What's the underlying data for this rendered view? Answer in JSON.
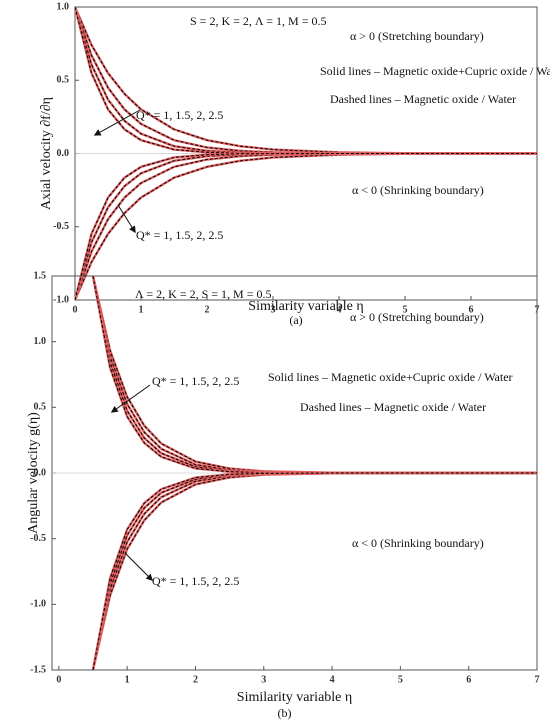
{
  "chart_data": [
    {
      "type": "line",
      "xlabel": "Similarity variable η",
      "ylabel": "Axial velocity ∂f/∂η",
      "caption": "(a)",
      "annotations": [
        "S = 2,  K = 2,  Λ = 1, M = 0.5",
        "α > 0 (Stretching boundary)",
        "Solid lines – Magnetic oxide+Cupric oxide / Water",
        "Dashed lines – Magnetic oxide / Water",
        "Q* = 1, 1.5, 2, 2.5",
        "α < 0 (Shrinking boundary)",
        "Q* = 1, 1.5, 2, 2.5"
      ],
      "xlim": [
        0,
        7
      ],
      "ylim": [
        -1,
        1
      ],
      "xticks": [
        0,
        1,
        2,
        3,
        4,
        5,
        6,
        7
      ],
      "yticks": [
        {
          "value": -1,
          "label": "-1.0"
        },
        -0.5,
        {
          "value": 0,
          "label": "0.0"
        },
        0.5,
        {
          "value": 1,
          "label": "1.0"
        }
      ],
      "line_color": "#e06060",
      "dash_color": "#000000",
      "x": [
        0,
        0.25,
        0.5,
        0.75,
        1,
        1.5,
        2,
        2.5,
        3,
        4,
        5,
        7
      ],
      "series": [
        {
          "values": [
            1,
            0.741,
            0.549,
            0.407,
            0.301,
            0.165,
            0.091,
            0.05,
            0.027,
            0.008,
            0.002,
            0
          ]
        },
        {
          "values": [
            1,
            0.67,
            0.449,
            0.301,
            0.202,
            0.091,
            0.041,
            0.018,
            0.008,
            0.002,
            0,
            0
          ]
        },
        {
          "values": [
            1,
            0.607,
            0.368,
            0.223,
            0.135,
            0.05,
            0.018,
            0.007,
            0.002,
            0,
            0,
            0
          ]
        },
        {
          "values": [
            1,
            0.549,
            0.301,
            0.165,
            0.091,
            0.027,
            0.008,
            0.002,
            0.001,
            0,
            0,
            0
          ]
        },
        {
          "values": [
            -1,
            -0.741,
            -0.549,
            -0.407,
            -0.301,
            -0.165,
            -0.091,
            -0.05,
            -0.027,
            -0.008,
            -0.002,
            0
          ]
        },
        {
          "values": [
            -1,
            -0.67,
            -0.449,
            -0.301,
            -0.202,
            -0.091,
            -0.041,
            -0.018,
            -0.008,
            -0.002,
            0,
            0
          ]
        },
        {
          "values": [
            -1,
            -0.607,
            -0.368,
            -0.223,
            -0.135,
            -0.05,
            -0.018,
            -0.007,
            -0.002,
            0,
            0,
            0
          ]
        },
        {
          "values": [
            -1,
            -0.549,
            -0.301,
            -0.165,
            -0.091,
            -0.027,
            -0.008,
            -0.002,
            -0.001,
            0,
            0,
            0
          ]
        }
      ]
    },
    {
      "type": "line",
      "xlabel": "Similarity variable η",
      "ylabel": "Angular velocity g(η)",
      "caption": "(b)",
      "annotations": [
        "Λ = 2,  K = 2,  S = 1,  M = 0.5",
        "α > 0 (Stretching boundary)",
        "Solid lines – Magnetic oxide+Cupric oxide / Water",
        "Dashed lines – Magnetic oxide / Water",
        "Q* = 1, 1.5, 2, 2.5",
        "α < 0 (Shrinking boundary)",
        "Q* = 1, 1.5, 2, 2.5"
      ],
      "xlim": [
        -0.1,
        7
      ],
      "ylim": [
        -1.5,
        1.5
      ],
      "xticks": [
        0,
        1,
        2,
        3,
        4,
        5,
        6,
        7
      ],
      "yticks": [
        {
          "value": -1.5,
          "label": "-1.5"
        },
        {
          "value": -1,
          "label": "-1.0"
        },
        -0.5,
        {
          "value": 0,
          "label": "0.0"
        },
        0.5,
        {
          "value": 1,
          "label": "1.0"
        },
        1.5
      ],
      "line_color": "#e06060",
      "dash_color": "#000000",
      "x": [
        0.5,
        0.75,
        1,
        1.25,
        1.5,
        2,
        2.5,
        3,
        4,
        5,
        7
      ],
      "series": [
        {
          "values": [
            1.5,
            0.933,
            0.58,
            0.361,
            0.224,
            0.087,
            0.034,
            0.013,
            0.002,
            0,
            0
          ]
        },
        {
          "values": [
            1.5,
            0.887,
            0.525,
            0.311,
            0.184,
            0.064,
            0.022,
            0.008,
            0.001,
            0,
            0
          ]
        },
        {
          "values": [
            1.5,
            0.844,
            0.475,
            0.267,
            0.15,
            0.048,
            0.015,
            0.005,
            0.001,
            0,
            0
          ]
        },
        {
          "values": [
            1.5,
            0.803,
            0.43,
            0.23,
            0.123,
            0.035,
            0.01,
            0.003,
            0,
            0,
            0
          ]
        },
        {
          "values": [
            -1.5,
            -0.933,
            -0.58,
            -0.361,
            -0.224,
            -0.087,
            -0.034,
            -0.013,
            -0.002,
            0,
            0
          ]
        },
        {
          "values": [
            -1.5,
            -0.887,
            -0.525,
            -0.311,
            -0.184,
            -0.064,
            -0.022,
            -0.008,
            -0.001,
            0,
            0
          ]
        },
        {
          "values": [
            -1.5,
            -0.844,
            -0.475,
            -0.267,
            -0.15,
            -0.048,
            -0.015,
            -0.005,
            -0.001,
            0,
            0
          ]
        },
        {
          "values": [
            -1.5,
            -0.803,
            -0.43,
            -0.23,
            -0.123,
            -0.035,
            -0.01,
            -0.003,
            0,
            0,
            0
          ]
        }
      ]
    }
  ]
}
